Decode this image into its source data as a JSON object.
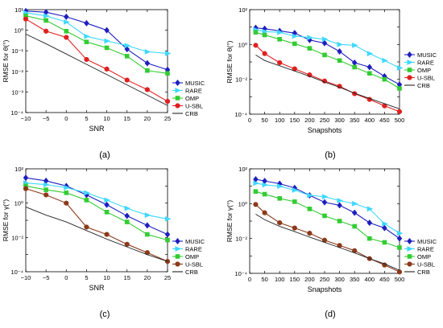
{
  "figure": {
    "panel_labels": [
      "(a)",
      "(b)",
      "(c)",
      "(d)"
    ]
  },
  "chart_data": [
    {
      "panel": "(a)",
      "type": "line",
      "xlabel": "SNR",
      "ylabel": "RMSE for θ(°)",
      "yscale": "log",
      "xlim": [
        -10,
        25
      ],
      "ylim": [
        0.0001,
        10
      ],
      "xticks": [
        -10,
        -5,
        0,
        5,
        10,
        15,
        20,
        25
      ],
      "xtick_labels": [
        "−10",
        "−5",
        "0",
        "5",
        "10",
        "15",
        "20",
        "25"
      ],
      "ytick_labels": [
        "10¹",
        "10⁰",
        "10⁻¹",
        "10⁻²",
        "10⁻³",
        "10⁻⁴"
      ],
      "grid": false,
      "legend": "right",
      "series": [
        {
          "name": "MUSIC",
          "color": "#1f1fbf",
          "marker": "diamond",
          "x": [
            -10,
            -5,
            0,
            5,
            10,
            15,
            20,
            25
          ],
          "y": [
            8.5,
            7.5,
            4.5,
            2.2,
            1.0,
            0.12,
            0.025,
            0.012
          ]
        },
        {
          "name": "RARE",
          "color": "#3fd8ff",
          "marker": "triangle-right",
          "x": [
            -10,
            -5,
            0,
            5,
            10,
            15,
            20,
            25
          ],
          "y": [
            7,
            5,
            2.5,
            0.5,
            0.3,
            0.18,
            0.09,
            0.075
          ]
        },
        {
          "name": "OMP",
          "color": "#33cc33",
          "marker": "square",
          "x": [
            -10,
            -5,
            0,
            5,
            10,
            15,
            20,
            25
          ],
          "y": [
            5,
            3,
            0.9,
            0.27,
            0.14,
            0.055,
            0.011,
            0.008
          ]
        },
        {
          "name": "U-SBL",
          "color": "#e02020",
          "marker": "circle",
          "x": [
            -10,
            -5,
            0,
            5,
            10,
            15,
            20,
            25
          ],
          "y": [
            3.5,
            0.9,
            0.45,
            0.038,
            0.013,
            0.0038,
            0.0013,
            0.00035
          ]
        },
        {
          "name": "CRB",
          "color": "#222222",
          "marker": "none",
          "x": [
            -10,
            -5,
            0,
            5,
            10,
            15,
            20,
            25
          ],
          "y": [
            0.65,
            0.22,
            0.07,
            0.022,
            0.007,
            0.0022,
            0.0007,
            0.00022
          ]
        }
      ]
    },
    {
      "panel": "(b)",
      "type": "line",
      "xlabel": "Snapshots",
      "ylabel": "RMSE for θ(°)",
      "yscale": "log",
      "xlim": [
        0,
        500
      ],
      "ylim": [
        0.0001,
        100
      ],
      "xticks": [
        0,
        50,
        100,
        150,
        200,
        250,
        300,
        350,
        400,
        450,
        500
      ],
      "xtick_labels": [
        "0",
        "50",
        "100",
        "150",
        "200",
        "250",
        "300",
        "350",
        "400",
        "450",
        "500"
      ],
      "ytick_labels": [
        "10²",
        "10⁰",
        "10⁻²",
        "10⁻⁴"
      ],
      "grid": false,
      "legend": "right",
      "series": [
        {
          "name": "MUSIC",
          "color": "#1f1fbf",
          "marker": "diamond",
          "x": [
            20,
            50,
            100,
            150,
            200,
            250,
            300,
            350,
            400,
            450,
            500
          ],
          "y": [
            9,
            8,
            6,
            4.5,
            1.8,
            1.2,
            0.4,
            0.09,
            0.05,
            0.015,
            0.005
          ]
        },
        {
          "name": "RARE",
          "color": "#3fd8ff",
          "marker": "triangle-right",
          "x": [
            20,
            50,
            100,
            150,
            200,
            250,
            300,
            350,
            400,
            450,
            500
          ],
          "y": [
            7,
            5.5,
            5,
            3,
            2.5,
            2,
            1,
            0.9,
            0.3,
            0.12,
            0.045
          ]
        },
        {
          "name": "OMP",
          "color": "#33cc33",
          "marker": "square",
          "x": [
            20,
            50,
            100,
            150,
            200,
            250,
            300,
            350,
            400,
            450,
            500
          ],
          "y": [
            5,
            3.5,
            2,
            1.1,
            0.6,
            0.25,
            0.12,
            0.05,
            0.022,
            0.01,
            0.003
          ]
        },
        {
          "name": "U-SBL",
          "color": "#e02020",
          "marker": "circle",
          "x": [
            20,
            50,
            100,
            150,
            200,
            250,
            300,
            350,
            400,
            450,
            500
          ],
          "y": [
            0.9,
            0.3,
            0.09,
            0.04,
            0.018,
            0.008,
            0.004,
            0.0015,
            0.0007,
            0.0003,
            0.00014
          ]
        },
        {
          "name": "CRB",
          "color": "#222222",
          "marker": "none",
          "x": [
            20,
            50,
            100,
            150,
            200,
            250,
            300,
            350,
            400,
            450,
            500
          ],
          "y": [
            0.25,
            0.12,
            0.06,
            0.03,
            0.015,
            0.007,
            0.0035,
            0.0016,
            0.0008,
            0.0004,
            0.0002
          ]
        }
      ]
    },
    {
      "panel": "(c)",
      "type": "line",
      "xlabel": "SNR",
      "ylabel": "RMSE for γ(°)",
      "yscale": "log",
      "xlim": [
        -10,
        25
      ],
      "ylim": [
        0.0001,
        100
      ],
      "xticks": [
        -10,
        -5,
        0,
        5,
        10,
        15,
        20,
        25
      ],
      "xtick_labels": [
        "−10",
        "−5",
        "0",
        "5",
        "10",
        "15",
        "20",
        "25"
      ],
      "ytick_labels": [
        "10²",
        "10⁰",
        "10⁻²",
        "10⁻⁴"
      ],
      "grid": false,
      "legend": "right",
      "series": [
        {
          "name": "MUSIC",
          "color": "#1f1fbf",
          "marker": "diamond",
          "x": [
            -10,
            -5,
            0,
            5,
            10,
            15,
            20,
            25
          ],
          "y": [
            30,
            20,
            10,
            3,
            0.8,
            0.18,
            0.05,
            0.015
          ]
        },
        {
          "name": "RARE",
          "color": "#3fd8ff",
          "marker": "triangle-right",
          "x": [
            -10,
            -5,
            0,
            5,
            10,
            15,
            20,
            25
          ],
          "y": [
            15,
            12,
            8,
            4,
            1.5,
            0.5,
            0.2,
            0.12
          ]
        },
        {
          "name": "OMP",
          "color": "#33cc33",
          "marker": "square",
          "x": [
            -10,
            -5,
            0,
            5,
            10,
            15,
            20,
            25
          ],
          "y": [
            10,
            6,
            4,
            1.5,
            0.3,
            0.08,
            0.015,
            0.007
          ]
        },
        {
          "name": "U-SBL",
          "color": "#8b3a1a",
          "marker": "circle",
          "x": [
            -10,
            -5,
            0,
            5,
            10,
            15,
            20,
            25
          ],
          "y": [
            7,
            3,
            1.0,
            0.04,
            0.015,
            0.004,
            0.0013,
            0.0004
          ]
        },
        {
          "name": "CRB",
          "color": "#222222",
          "marker": "none",
          "x": [
            -10,
            -5,
            0,
            5,
            10,
            15,
            20,
            25
          ],
          "y": [
            0.6,
            0.2,
            0.08,
            0.025,
            0.008,
            0.0028,
            0.001,
            0.0004
          ]
        }
      ]
    },
    {
      "panel": "(d)",
      "type": "line",
      "xlabel": "Snapshots",
      "ylabel": "RMSE for γ(°)",
      "yscale": "log",
      "xlim": [
        0,
        500
      ],
      "ylim": [
        0.0001,
        100
      ],
      "xticks": [
        0,
        50,
        100,
        150,
        200,
        250,
        300,
        350,
        400,
        450,
        500
      ],
      "xtick_labels": [
        "0",
        "50",
        "100",
        "150",
        "200",
        "250",
        "300",
        "350",
        "400",
        "450",
        "500"
      ],
      "ytick_labels": [
        "10²",
        "10⁰",
        "10⁻²",
        "10⁻⁴"
      ],
      "grid": false,
      "legend": "right",
      "series": [
        {
          "name": "MUSIC",
          "color": "#1f1fbf",
          "marker": "diamond",
          "x": [
            20,
            50,
            100,
            150,
            200,
            250,
            300,
            350,
            400,
            450,
            500
          ],
          "y": [
            25,
            20,
            14,
            8,
            3,
            1.2,
            0.8,
            0.3,
            0.08,
            0.04,
            0.01
          ]
        },
        {
          "name": "RARE",
          "color": "#3fd8ff",
          "marker": "triangle-right",
          "x": [
            20,
            50,
            100,
            150,
            200,
            250,
            300,
            350,
            400,
            450,
            500
          ],
          "y": [
            15,
            12,
            10,
            6,
            3,
            2.5,
            1.5,
            1,
            0.5,
            0.07,
            0.02
          ]
        },
        {
          "name": "OMP",
          "color": "#33cc33",
          "marker": "square",
          "x": [
            20,
            50,
            100,
            150,
            200,
            250,
            300,
            350,
            400,
            450,
            500
          ],
          "y": [
            5,
            3.5,
            2,
            1.3,
            0.5,
            0.2,
            0.1,
            0.05,
            0.01,
            0.006,
            0.003
          ]
        },
        {
          "name": "U-SBL",
          "color": "#8b3a1a",
          "marker": "circle",
          "x": [
            20,
            50,
            100,
            150,
            200,
            250,
            300,
            350,
            400,
            450,
            500
          ],
          "y": [
            0.9,
            0.3,
            0.08,
            0.04,
            0.02,
            0.008,
            0.004,
            0.002,
            0.0007,
            0.0003,
            0.00012
          ]
        },
        {
          "name": "CRB",
          "color": "#222222",
          "marker": "none",
          "x": [
            20,
            50,
            100,
            150,
            200,
            250,
            300,
            350,
            400,
            450,
            500
          ],
          "y": [
            0.25,
            0.12,
            0.05,
            0.025,
            0.012,
            0.006,
            0.003,
            0.0015,
            0.0007,
            0.00035,
            0.00015
          ]
        }
      ]
    }
  ]
}
